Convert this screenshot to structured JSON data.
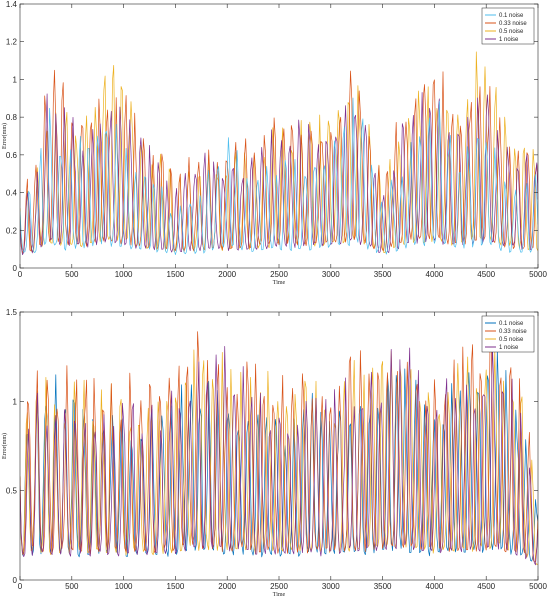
{
  "colors": {
    "series": [
      "#0072BD",
      "#D95319",
      "#EDB120",
      "#7E2F8E"
    ],
    "light_series": [
      "#4DBEEE",
      "#D95319",
      "#EDB120",
      "#7E2F8E"
    ],
    "axis": "#262626"
  },
  "chart_data": [
    {
      "type": "line",
      "title": "",
      "xlabel": "Time",
      "ylabel": "Error(mm)",
      "xlim": [
        0,
        5000
      ],
      "ylim": [
        0,
        1.4
      ],
      "xticks": [
        "0",
        "500",
        "1000",
        "1500",
        "2000",
        "2500",
        "3000",
        "3500",
        "4000",
        "4500",
        "5000"
      ],
      "yticks": [
        "0",
        "0.2",
        "0.4",
        "0.6",
        "0.8",
        "1",
        "1.2",
        "1.4"
      ],
      "legend_position": "top-right",
      "grid": false,
      "series": [
        {
          "name": "0.1 noise",
          "x": [
            0,
            150,
            280,
            450,
            640,
            840,
            1050,
            1250,
            1500,
            1750,
            2000,
            2250,
            2500,
            2750,
            3000,
            3250,
            3500,
            3750,
            4000,
            4250,
            4450,
            4700,
            5000
          ],
          "values": [
            0.4,
            0.5,
            0.87,
            0.6,
            0.74,
            0.88,
            0.6,
            0.55,
            0.3,
            0.45,
            0.73,
            0.45,
            0.62,
            0.55,
            0.7,
            0.95,
            0.35,
            0.7,
            0.95,
            0.6,
            0.9,
            0.45,
            0.5
          ]
        },
        {
          "name": "0.33 noise",
          "x": [
            0,
            150,
            280,
            450,
            640,
            840,
            1050,
            1250,
            1500,
            1750,
            2000,
            2250,
            2500,
            2750,
            3000,
            3250,
            3500,
            3750,
            4000,
            4250,
            4450,
            4700,
            5000
          ],
          "values": [
            0.45,
            0.55,
            1.12,
            0.95,
            0.85,
            1.02,
            0.9,
            0.7,
            0.55,
            0.62,
            0.65,
            0.7,
            0.9,
            0.82,
            0.85,
            1.12,
            0.5,
            1.02,
            1.12,
            0.9,
            1.1,
            0.7,
            0.6
          ]
        },
        {
          "name": "0.5 noise",
          "x": [
            0,
            150,
            280,
            450,
            640,
            840,
            1050,
            1250,
            1500,
            1750,
            2000,
            2250,
            2500,
            2750,
            3000,
            3250,
            3500,
            3750,
            4000,
            4250,
            4450,
            4700,
            5000
          ],
          "values": [
            0.4,
            0.5,
            0.95,
            0.85,
            0.8,
            1.25,
            0.92,
            0.7,
            0.5,
            0.6,
            0.6,
            0.65,
            0.85,
            0.8,
            0.9,
            1.12,
            0.45,
            0.9,
            1.05,
            0.85,
            1.25,
            0.8,
            0.6
          ]
        },
        {
          "name": "1 noise",
          "x": [
            0,
            150,
            280,
            450,
            640,
            840,
            1050,
            1250,
            1500,
            1750,
            2000,
            2250,
            2500,
            2750,
            3000,
            3250,
            3500,
            3750,
            4000,
            4250,
            4450,
            4700,
            5000
          ],
          "values": [
            0.35,
            0.45,
            1.0,
            0.85,
            0.75,
            1.02,
            0.8,
            0.65,
            0.45,
            0.62,
            0.55,
            0.6,
            0.8,
            0.78,
            0.8,
            1.0,
            0.4,
            0.88,
            1.0,
            0.8,
            1.05,
            0.75,
            0.55
          ]
        }
      ]
    },
    {
      "type": "line",
      "title": "",
      "xlabel": "Time",
      "ylabel": "Error(mm)",
      "xlim": [
        0,
        5000
      ],
      "ylim": [
        0,
        1.5
      ],
      "xticks": [
        "0",
        "500",
        "1000",
        "1500",
        "2000",
        "2500",
        "3000",
        "3500",
        "4000",
        "4500",
        "5000"
      ],
      "yticks": [
        "0",
        "0.5",
        "1",
        "1.5"
      ],
      "legend_position": "top-right",
      "grid": false,
      "series": [
        {
          "name": "0.1 noise",
          "x": [
            0,
            150,
            350,
            600,
            850,
            1100,
            1350,
            1700,
            2000,
            2300,
            2550,
            2800,
            3050,
            3350,
            3700,
            4000,
            4250,
            4600,
            4850,
            5000
          ],
          "values": [
            0.9,
            1.1,
            1.15,
            1.0,
            1.05,
            0.95,
            1.0,
            1.2,
            1.05,
            1.0,
            0.95,
            1.05,
            1.0,
            1.15,
            1.2,
            1.0,
            1.15,
            1.3,
            0.95,
            0.4
          ]
        },
        {
          "name": "0.33 noise",
          "x": [
            0,
            150,
            350,
            600,
            850,
            1100,
            1350,
            1700,
            2000,
            2300,
            2550,
            2800,
            3050,
            3350,
            3700,
            4000,
            4250,
            4600,
            4850,
            5000
          ],
          "values": [
            1.0,
            1.25,
            1.2,
            1.2,
            1.2,
            1.15,
            1.15,
            1.45,
            1.3,
            1.2,
            1.25,
            1.15,
            1.25,
            1.3,
            1.35,
            1.2,
            1.3,
            1.4,
            1.15,
            0.45
          ]
        },
        {
          "name": "0.5 noise",
          "x": [
            0,
            150,
            350,
            600,
            850,
            1100,
            1350,
            1700,
            2000,
            2300,
            2550,
            2800,
            3050,
            3350,
            3700,
            4000,
            4250,
            4600,
            4850,
            5000
          ],
          "values": [
            0.95,
            1.2,
            1.1,
            1.15,
            1.1,
            1.1,
            1.1,
            1.4,
            1.25,
            1.15,
            1.2,
            1.1,
            1.2,
            1.25,
            1.3,
            1.15,
            1.25,
            1.35,
            1.1,
            0.4
          ]
        },
        {
          "name": "1 noise",
          "x": [
            0,
            150,
            350,
            600,
            850,
            1100,
            1350,
            1700,
            2000,
            2300,
            2550,
            2800,
            3050,
            3350,
            3700,
            4000,
            4250,
            4600,
            4850,
            5000
          ],
          "values": [
            0.9,
            1.05,
            1.0,
            1.05,
            1.05,
            1.0,
            1.0,
            1.3,
            1.35,
            1.05,
            1.0,
            1.0,
            1.1,
            1.2,
            1.35,
            1.1,
            1.2,
            1.35,
            1.0,
            0.35
          ]
        }
      ]
    }
  ]
}
